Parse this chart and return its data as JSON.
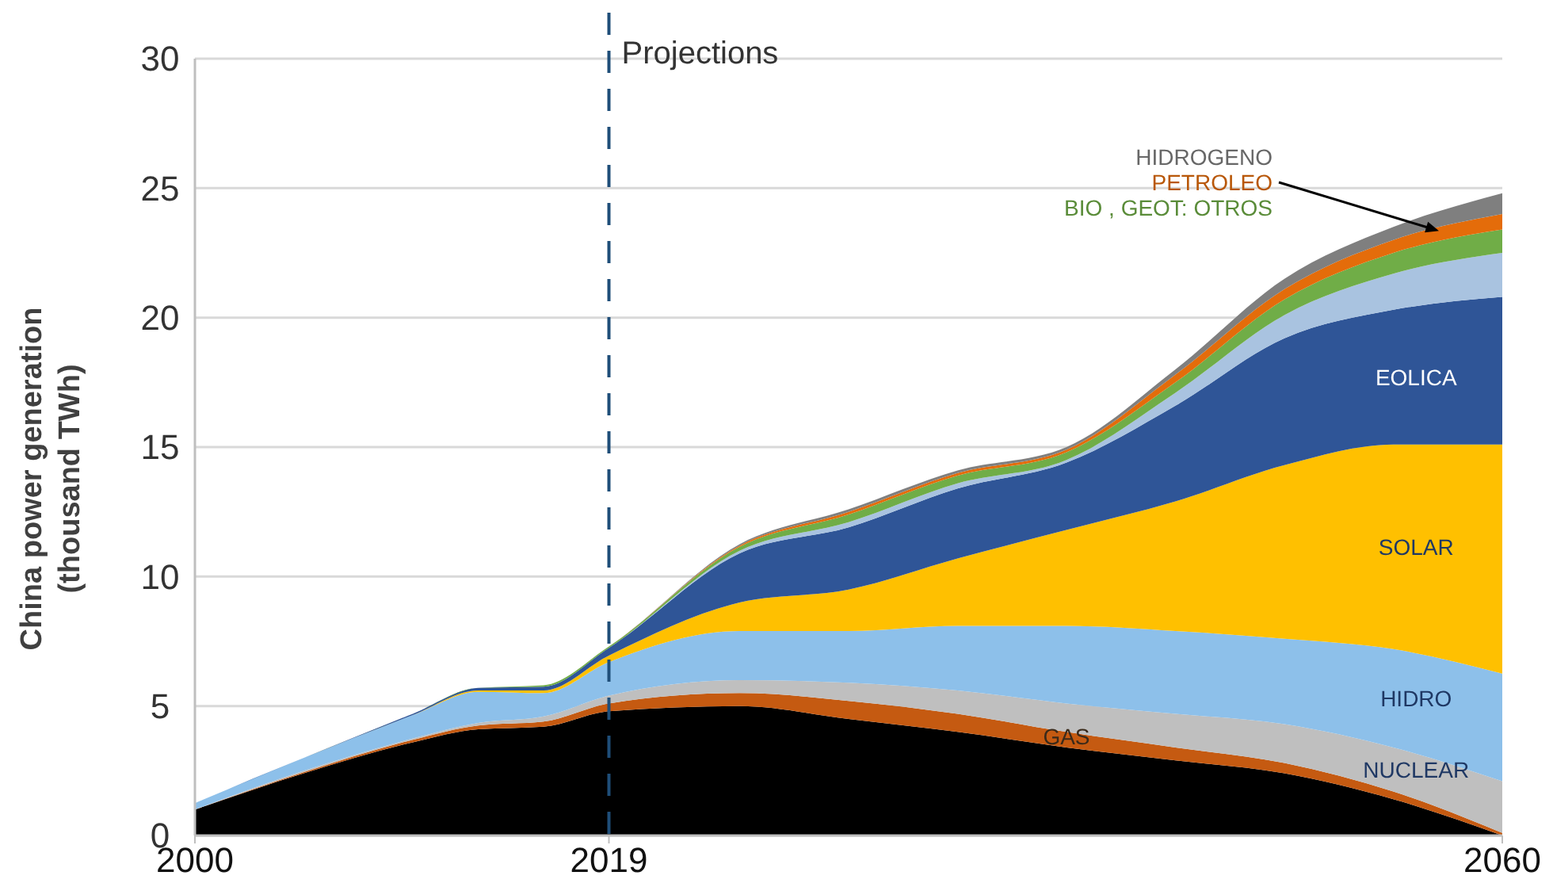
{
  "chart_data": {
    "type": "area",
    "stacked": true,
    "ylabel": "China power generation\n(thousand TWh)",
    "x": [
      2000,
      2005,
      2010,
      2013,
      2016,
      2019,
      2025,
      2030,
      2035,
      2040,
      2045,
      2050,
      2055,
      2060
    ],
    "xlim": [
      2000,
      2060
    ],
    "xticks": [
      2000,
      2019,
      2060
    ],
    "ylim": [
      0,
      30
    ],
    "yticks": [
      0,
      5,
      10,
      15,
      20,
      25,
      30
    ],
    "grid": "y",
    "ref_lines": [
      {
        "axis": "x",
        "value": 2019,
        "label": "Projections",
        "color": "#1f4e79",
        "line_style": "dashed"
      }
    ],
    "series": [
      {
        "color": "#000000",
        "values": [
          1.0,
          2.4,
          3.6,
          4.1,
          4.2,
          4.8,
          5.0,
          4.5,
          4.0,
          3.4,
          2.9,
          2.4,
          1.4,
          0
        ]
      },
      {
        "name": "GAS",
        "color": "#c55a11",
        "values": [
          0,
          0.05,
          0.1,
          0.15,
          0.2,
          0.3,
          0.5,
          0.7,
          0.7,
          0.6,
          0.5,
          0.4,
          0.3,
          0.1
        ]
      },
      {
        "name": "NUCLEAR",
        "color": "#bfbfbf",
        "values": [
          0,
          0.05,
          0.05,
          0.1,
          0.2,
          0.3,
          0.5,
          0.7,
          0.9,
          1.1,
          1.3,
          1.5,
          1.7,
          2.0
        ]
      },
      {
        "name": "HIDRO",
        "color": "#8dc0ea",
        "values": [
          0.25,
          0.5,
          0.9,
          1.2,
          0.9,
          1.3,
          1.9,
          2.0,
          2.5,
          3.0,
          3.2,
          3.3,
          3.8,
          4.15
        ]
      },
      {
        "name": "SOLAR",
        "color": "#ffc000",
        "values": [
          0,
          0,
          0,
          0.05,
          0.1,
          0.25,
          1.1,
          1.6,
          2.6,
          3.7,
          5.0,
          6.7,
          7.9,
          8.85
        ]
      },
      {
        "name": "EOLICA",
        "color": "#2f5597",
        "values": [
          0,
          0,
          0.05,
          0.1,
          0.15,
          0.3,
          1.9,
          2.4,
          2.7,
          2.6,
          3.7,
          4.9,
          5.2,
          5.7
        ]
      },
      {
        "color": "#a9c3e0",
        "values": [
          0,
          0,
          0,
          0,
          0,
          0,
          0.1,
          0.2,
          0.2,
          0.1,
          0.5,
          0.9,
          1.4,
          1.7
        ]
      },
      {
        "name": "BIO , GEOT: OTROS",
        "color": "#70ad47",
        "values": [
          0,
          0,
          0,
          0,
          0.05,
          0.05,
          0.15,
          0.3,
          0.3,
          0.3,
          0.4,
          0.6,
          0.8,
          0.9
        ]
      },
      {
        "name": "PETROLEO",
        "color": "#e46c0a",
        "values": [
          0,
          0,
          0,
          0,
          0,
          0,
          0.05,
          0.1,
          0.1,
          0.1,
          0.3,
          0.4,
          0.5,
          0.6
        ]
      },
      {
        "name": "HIDROGENO",
        "color": "#7f7f7f",
        "values": [
          0,
          0,
          0,
          0,
          0,
          0,
          0.05,
          0.1,
          0.1,
          0.1,
          0.2,
          0.4,
          0.5,
          0.8
        ]
      }
    ]
  }
}
